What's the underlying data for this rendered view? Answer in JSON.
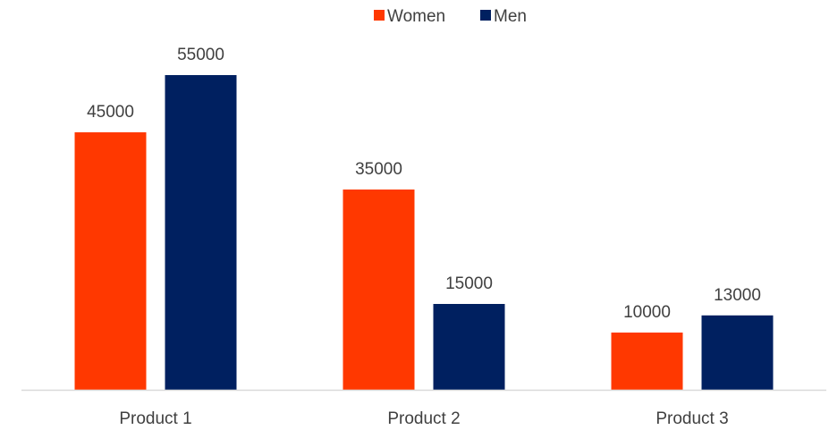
{
  "chart_data": {
    "type": "bar",
    "title": "",
    "xlabel": "",
    "ylabel": "",
    "categories": [
      "Product 1",
      "Product 2",
      "Product 3"
    ],
    "series": [
      {
        "name": "Women",
        "values": [
          45000,
          35000,
          10000
        ],
        "color": "#FF3800"
      },
      {
        "name": "Men",
        "values": [
          55000,
          15000,
          13000
        ],
        "color": "#002060"
      }
    ],
    "ylim": [
      0,
      60000
    ],
    "grid": false,
    "legend_position": "top-center",
    "data_labels": true,
    "axis_color": "#D9D9D9",
    "text_color": "#404040"
  }
}
